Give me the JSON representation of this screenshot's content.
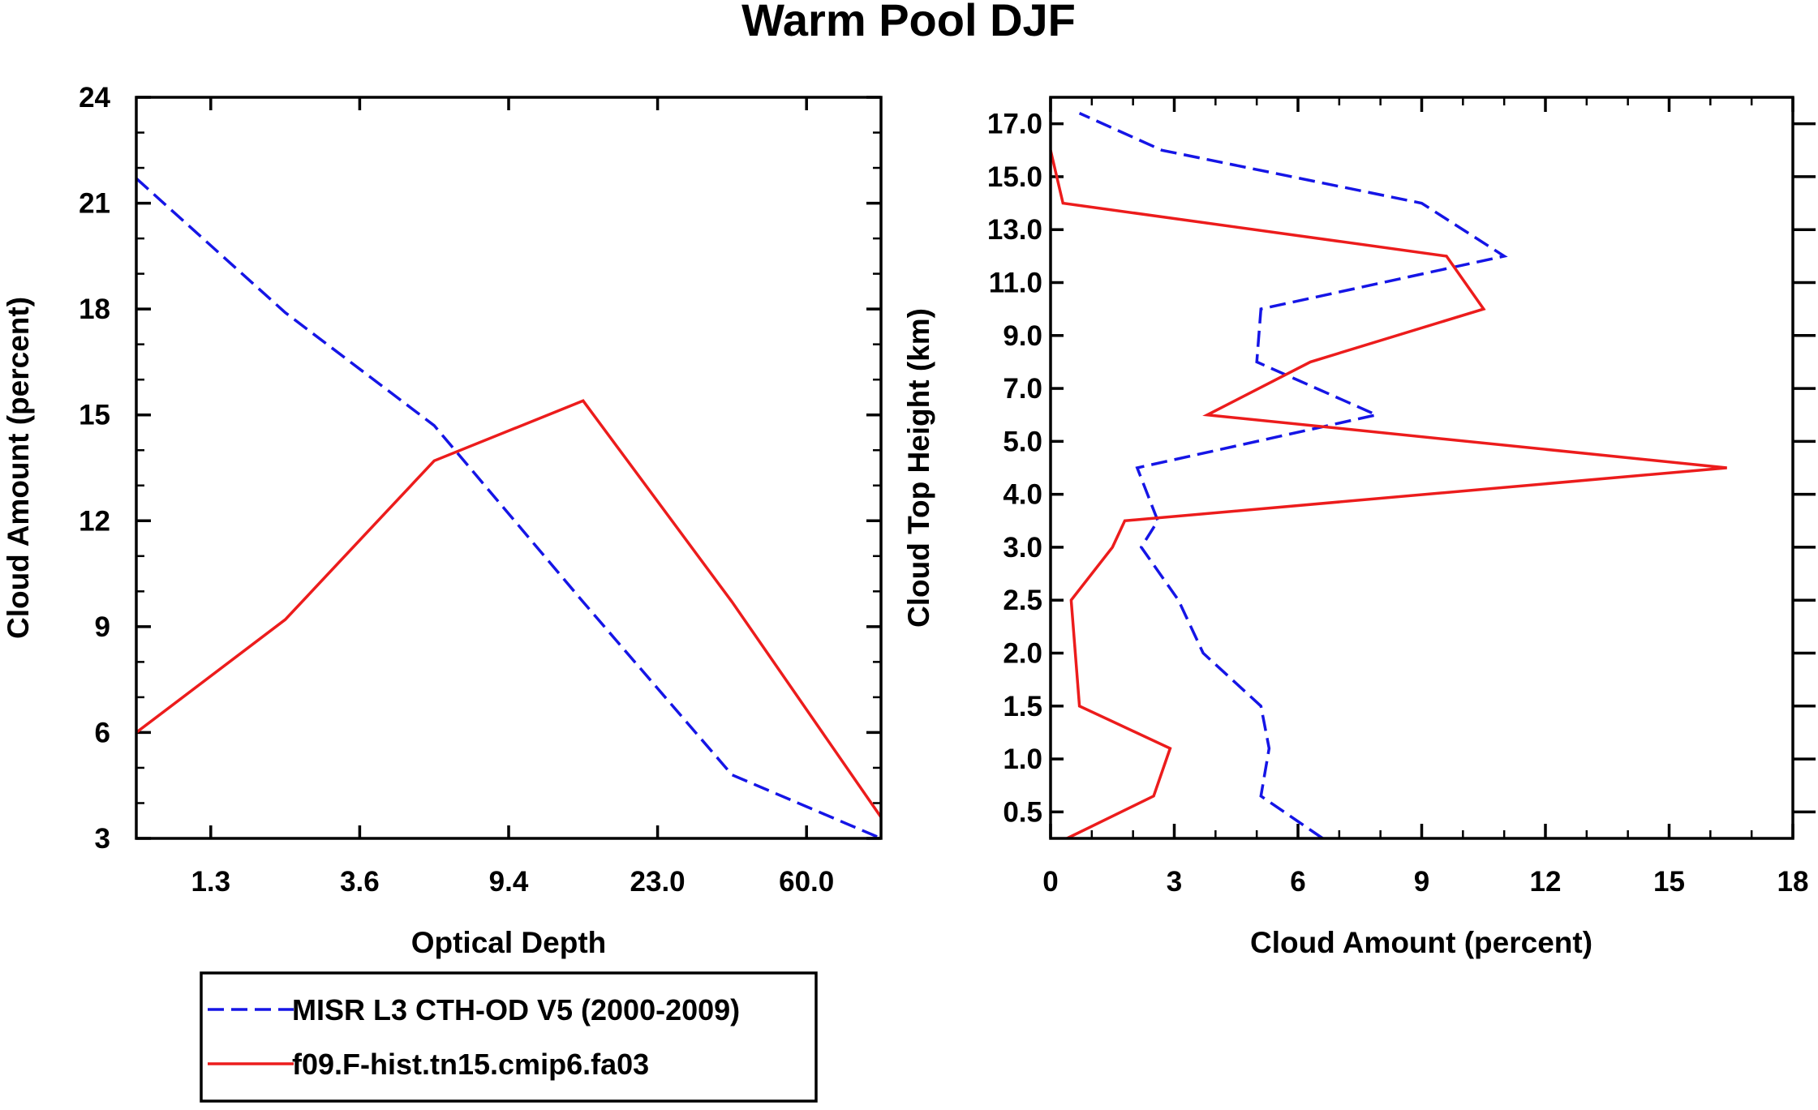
{
  "title": "Warm Pool DJF",
  "colors": {
    "obs": "#1515e6",
    "model": "#ec1c1c"
  },
  "legend": [
    {
      "label": "MISR L3 CTH-OD V5 (2000-2009)",
      "style": "dashed",
      "color": "#1515e6"
    },
    {
      "label": "f09.F-hist.tn15.cmip6.fa03",
      "style": "solid",
      "color": "#ec1c1c"
    }
  ],
  "chart_data": [
    {
      "type": "line",
      "xlabel": "Optical Depth",
      "ylabel": "Cloud Amount (percent)",
      "x_index": [
        0,
        1,
        2,
        3,
        4,
        5
      ],
      "xlim": [
        0,
        5
      ],
      "xticks": [
        {
          "pos": 0.5,
          "label": "1.3"
        },
        {
          "pos": 1.5,
          "label": "3.6"
        },
        {
          "pos": 2.5,
          "label": "9.4"
        },
        {
          "pos": 3.5,
          "label": "23.0"
        },
        {
          "pos": 4.5,
          "label": "60.0"
        }
      ],
      "ylim": [
        3,
        24
      ],
      "yticks": [
        3,
        6,
        9,
        12,
        15,
        18,
        21,
        24
      ],
      "series": [
        {
          "name": "MISR L3 CTH-OD V5 (2000-2009)",
          "style": "dashed",
          "values": [
            21.7,
            17.9,
            14.7,
            9.7,
            4.8,
            3.0
          ]
        },
        {
          "name": "f09.F-hist.tn15.cmip6.fa03",
          "style": "solid",
          "values": [
            6.0,
            9.2,
            13.7,
            15.4,
            9.7,
            3.6
          ]
        }
      ]
    },
    {
      "type": "line",
      "orientation": "horizontal-profile",
      "xlabel": "Cloud Amount (percent)",
      "ylabel": "Cloud Top Height (km)",
      "xlim": [
        0,
        18
      ],
      "xticks": [
        0,
        3,
        6,
        9,
        12,
        15,
        18
      ],
      "ylim": [
        0,
        14
      ],
      "yticks": [
        {
          "pos": 0.5,
          "label": "0.5"
        },
        {
          "pos": 1.5,
          "label": "1.0"
        },
        {
          "pos": 2.5,
          "label": "1.5"
        },
        {
          "pos": 3.5,
          "label": "2.0"
        },
        {
          "pos": 4.5,
          "label": "2.5"
        },
        {
          "pos": 5.5,
          "label": "3.0"
        },
        {
          "pos": 6.5,
          "label": "4.0"
        },
        {
          "pos": 7.5,
          "label": "5.0"
        },
        {
          "pos": 8.5,
          "label": "7.0"
        },
        {
          "pos": 9.5,
          "label": "9.0"
        },
        {
          "pos": 10.5,
          "label": "11.0"
        },
        {
          "pos": 11.5,
          "label": "13.0"
        },
        {
          "pos": 12.5,
          "label": "15.0"
        },
        {
          "pos": 13.5,
          "label": "17.0"
        }
      ],
      "levels": [
        0,
        0.8,
        1.7,
        2.5,
        3.5,
        4.5,
        5.5,
        6,
        7,
        8,
        9,
        10,
        11,
        12,
        13,
        13.7,
        14
      ],
      "series": [
        {
          "name": "MISR L3 CTH-OD V5 (2000-2009)",
          "style": "dashed",
          "values": [
            6.6,
            5.1,
            5.3,
            5.1,
            3.7,
            3.1,
            2.2,
            2.6,
            2.1,
            7.9,
            5.0,
            5.1,
            11.0,
            9.0,
            2.7,
            0.7,
            null
          ]
        },
        {
          "name": "f09.F-hist.tn15.cmip6.fa03",
          "style": "solid",
          "values": [
            0.4,
            2.5,
            2.9,
            0.7,
            0.6,
            0.5,
            1.5,
            1.8,
            16.4,
            3.8,
            6.3,
            10.5,
            9.6,
            0.3,
            0.0,
            null,
            null
          ]
        }
      ]
    }
  ]
}
